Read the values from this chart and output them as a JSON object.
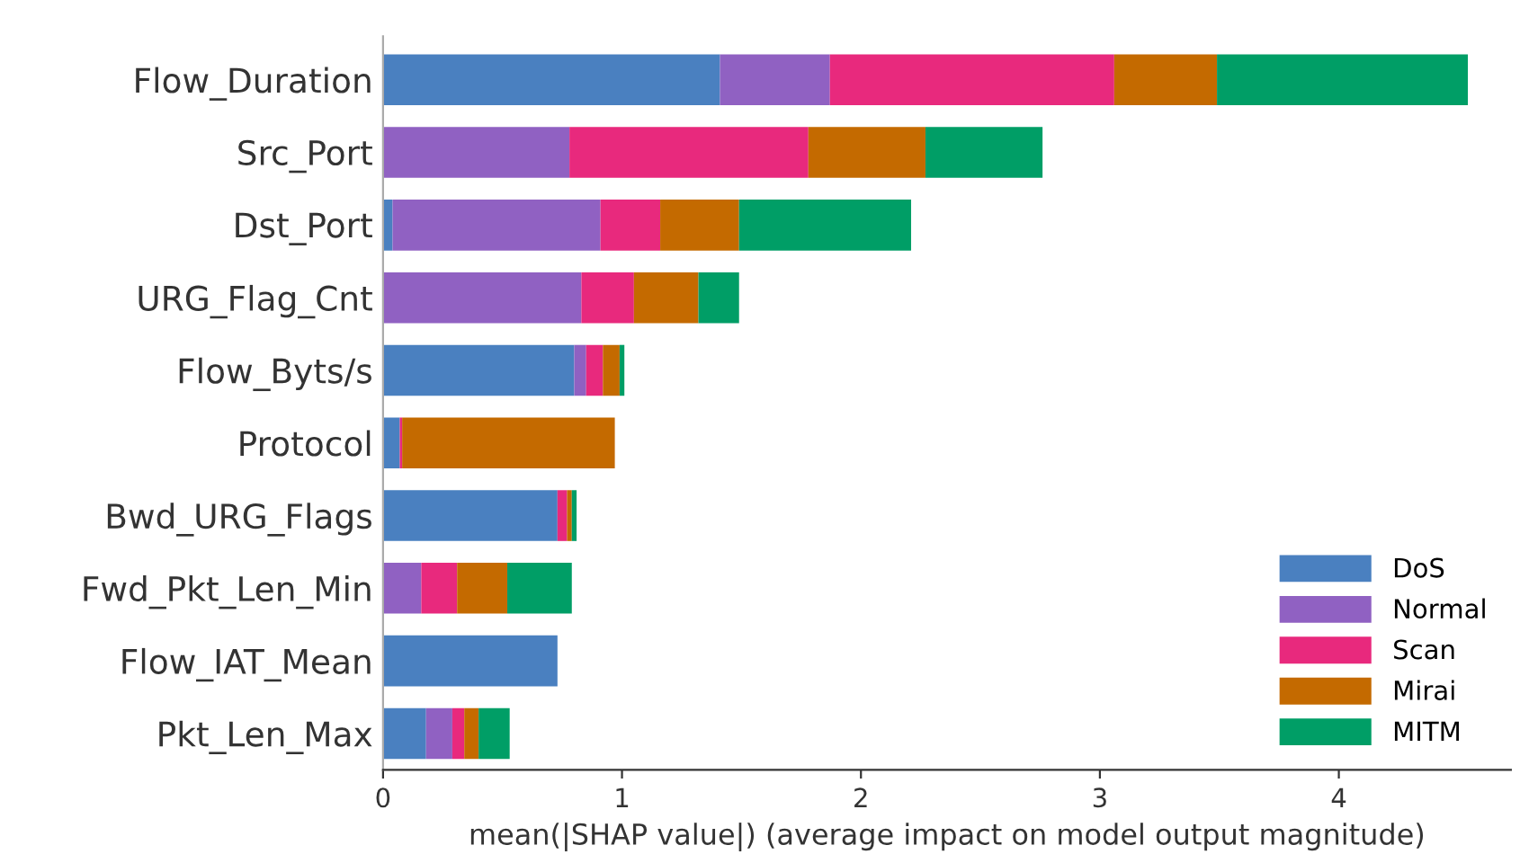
{
  "chart_data": {
    "type": "bar",
    "orientation": "horizontal",
    "stacked": true,
    "xlabel": "mean(|SHAP value|) (average impact on model output magnitude)",
    "categories": [
      "Flow_Duration",
      "Src_Port",
      "Dst_Port",
      "URG_Flag_Cnt",
      "Flow_Byts/s",
      "Protocol",
      "Bwd_URG_Flags",
      "Fwd_Pkt_Len_Min",
      "Flow_IAT_Mean",
      "Pkt_Len_Max"
    ],
    "series": [
      {
        "name": "DoS",
        "color": "#4a80c0",
        "values": [
          1.41,
          0,
          0.04,
          0,
          0.8,
          0.07,
          0.73,
          0,
          0.73,
          0.18
        ]
      },
      {
        "name": "Normal",
        "color": "#9061c2",
        "values": [
          0.46,
          0.78,
          0.87,
          0.83,
          0.05,
          0,
          0,
          0.16,
          0,
          0.11
        ]
      },
      {
        "name": "Scan",
        "color": "#e8297d",
        "values": [
          1.19,
          1.0,
          0.25,
          0.22,
          0.07,
          0.01,
          0.04,
          0.15,
          0,
          0.05
        ]
      },
      {
        "name": "Mirai",
        "color": "#c46a00",
        "values": [
          0.43,
          0.49,
          0.33,
          0.27,
          0.07,
          0.89,
          0.02,
          0.21,
          0,
          0.06
        ]
      },
      {
        "name": "MITM",
        "color": "#009e66",
        "values": [
          1.05,
          0.49,
          0.72,
          0.17,
          0.02,
          0,
          0.02,
          0.27,
          0,
          0.13
        ]
      }
    ],
    "xlim": [
      0,
      4.72
    ],
    "xticks": [
      0,
      1,
      2,
      3,
      4
    ],
    "grid": false,
    "legend": "bottom right"
  }
}
